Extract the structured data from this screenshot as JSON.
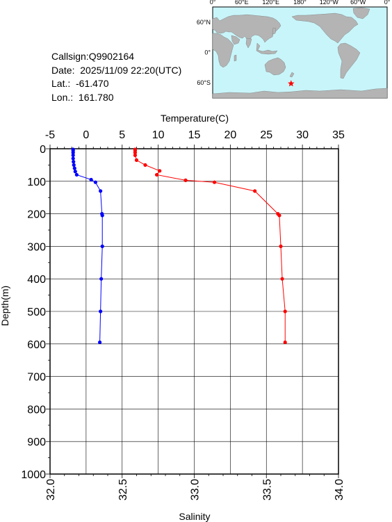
{
  "info": {
    "callsign": "Callsign:Q9902164",
    "date": "Date:  2025/11/09 22:20(UTC)",
    "lat": "Lat.:  -61.470",
    "lon": "Lon.:  161.780"
  },
  "map": {
    "lon_labels": [
      "0°",
      "60°E",
      "120°E",
      "180°",
      "120°W",
      "60°W",
      "0°"
    ],
    "lat_labels": [
      "60°N",
      "0°",
      "60°S"
    ],
    "ocean_color": "#c8f5fa",
    "land_color": "#b4b4b4",
    "marker": {
      "type": "star",
      "color": "#ff0000",
      "lon": 161.78,
      "lat": -61.47
    }
  },
  "chart_data": {
    "type": "line",
    "temperature_axis": {
      "label": "Temperature(C)",
      "range": [
        -5,
        35
      ],
      "ticks": [
        "-5",
        "0",
        "5",
        "10",
        "15",
        "20",
        "25",
        "30",
        "35"
      ]
    },
    "salinity_axis": {
      "label": "Salinity",
      "range": [
        32.0,
        34.0
      ],
      "ticks": [
        "32.0",
        "32.5",
        "33.0",
        "33.5",
        "34.0"
      ]
    },
    "depth_axis": {
      "label": "Depth(m)",
      "range": [
        0,
        1000
      ],
      "inverted": true,
      "ticks": [
        "0",
        "100",
        "200",
        "300",
        "400",
        "500",
        "600",
        "700",
        "800",
        "900",
        "1000"
      ]
    },
    "grid": true,
    "series": [
      {
        "name": "Temperature",
        "axis": "temperature",
        "color": "#0000ff",
        "points": [
          {
            "value": -1.8,
            "depth": 2
          },
          {
            "value": -1.8,
            "depth": 6
          },
          {
            "value": -1.8,
            "depth": 12
          },
          {
            "value": -1.8,
            "depth": 20
          },
          {
            "value": -1.8,
            "depth": 30
          },
          {
            "value": -1.75,
            "depth": 40
          },
          {
            "value": -1.7,
            "depth": 50
          },
          {
            "value": -1.6,
            "depth": 60
          },
          {
            "value": -1.5,
            "depth": 70
          },
          {
            "value": -1.3,
            "depth": 80
          },
          {
            "value": 0.7,
            "depth": 95
          },
          {
            "value": 1.3,
            "depth": 103
          },
          {
            "value": 2.0,
            "depth": 130
          },
          {
            "value": 2.2,
            "depth": 200
          },
          {
            "value": 2.25,
            "depth": 205
          },
          {
            "value": 2.25,
            "depth": 300
          },
          {
            "value": 2.1,
            "depth": 400
          },
          {
            "value": 2.0,
            "depth": 500
          },
          {
            "value": 1.9,
            "depth": 595
          }
        ]
      },
      {
        "name": "Salinity",
        "axis": "salinity",
        "color": "#ff0000",
        "points": [
          {
            "value": 32.59,
            "depth": 2
          },
          {
            "value": 32.59,
            "depth": 6
          },
          {
            "value": 32.59,
            "depth": 12
          },
          {
            "value": 32.59,
            "depth": 20
          },
          {
            "value": 32.6,
            "depth": 35
          },
          {
            "value": 32.66,
            "depth": 50
          },
          {
            "value": 32.76,
            "depth": 68
          },
          {
            "value": 32.74,
            "depth": 80
          },
          {
            "value": 32.94,
            "depth": 97
          },
          {
            "value": 33.14,
            "depth": 103
          },
          {
            "value": 33.42,
            "depth": 130
          },
          {
            "value": 33.58,
            "depth": 200
          },
          {
            "value": 33.59,
            "depth": 205
          },
          {
            "value": 33.6,
            "depth": 300
          },
          {
            "value": 33.61,
            "depth": 400
          },
          {
            "value": 33.63,
            "depth": 500
          },
          {
            "value": 33.63,
            "depth": 595
          }
        ]
      }
    ]
  }
}
